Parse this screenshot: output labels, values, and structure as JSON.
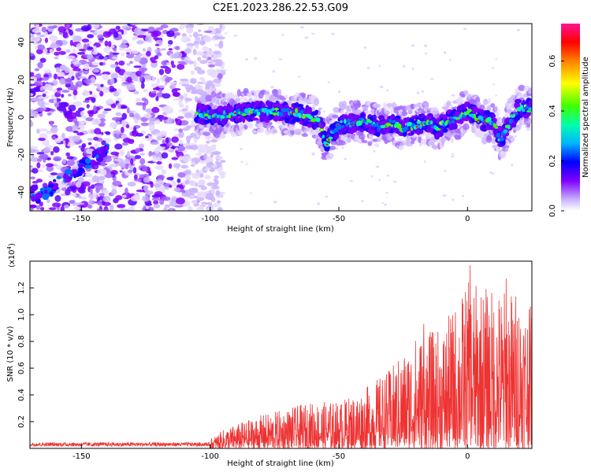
{
  "title": "C2E1.2023.286.22.53.G09",
  "chart_data": [
    {
      "type": "heatmap",
      "xlabel": "Height of straight line (km)",
      "ylabel": "Frequency (Hz)",
      "xlim": [
        -170,
        25
      ],
      "ylim": [
        -50,
        50
      ],
      "xticks": [
        -150,
        -100,
        -50,
        0
      ],
      "yticks": [
        -40,
        -20,
        0,
        20,
        40
      ],
      "grid": false,
      "colorbar": {
        "label": "Normalized spectral amplitude",
        "range": [
          0.0,
          0.75
        ],
        "ticks": [
          0.0,
          0.2,
          0.4,
          0.6
        ],
        "colormap": [
          "#ffffff",
          "#d9c7ff",
          "#7f00ff",
          "#0000ff",
          "#00b4ff",
          "#00ffaa",
          "#40ff00",
          "#ffff00",
          "#ff8000",
          "#ff0000",
          "#ff1493"
        ]
      },
      "ridge": {
        "description_free": true,
        "x": [
          -105,
          -95,
          -85,
          -75,
          -65,
          -58,
          -55,
          -50,
          -45,
          -40,
          -35,
          -30,
          -25,
          -20,
          -15,
          -12,
          -8,
          -5,
          0,
          5,
          10,
          13,
          17,
          20,
          25
        ],
        "freq": [
          2,
          1,
          3,
          3,
          2,
          -2,
          -14,
          -4,
          -3,
          -2,
          -5,
          -3,
          -6,
          -4,
          -3,
          -6,
          -2,
          -1,
          3,
          -1,
          -3,
          -12,
          -2,
          5,
          4
        ]
      },
      "noisy_region": {
        "x": [
          -170,
          -100
        ],
        "freq": [
          -50,
          50
        ]
      },
      "low_branch": {
        "x": [
          -170,
          -140
        ],
        "freq": [
          -46,
          -17
        ]
      }
    },
    {
      "type": "line",
      "xlabel": "Height of straight line (km)",
      "ylabel": "SNR (10 * v/v)",
      "y_multiplier": "(x10",
      "y_multiplier_exp": "4",
      "xlim": [
        -170,
        25
      ],
      "ylim": [
        0,
        1.4
      ],
      "xticks": [
        -150,
        -100,
        -50,
        0
      ],
      "yticks": [
        0.2,
        0.4,
        0.6,
        0.8,
        1.0,
        1.2
      ],
      "color": "#ee3333",
      "envelope": {
        "x": [
          -170,
          -110,
          -100,
          -95,
          -90,
          -80,
          -70,
          -60,
          -50,
          -40,
          -30,
          -20,
          -10,
          0,
          10,
          20,
          25
        ],
        "max": [
          0.05,
          0.05,
          0.07,
          0.14,
          0.18,
          0.25,
          0.3,
          0.35,
          0.35,
          0.45,
          0.6,
          0.85,
          0.9,
          1.25,
          1.2,
          1.2,
          1.05
        ]
      },
      "peaks": [
        {
          "x": -17,
          "y": 0.93
        },
        {
          "x": 1,
          "y": 1.37
        },
        {
          "x": 15,
          "y": 1.27
        },
        {
          "x": 24,
          "y": 1.04
        }
      ]
    }
  ]
}
